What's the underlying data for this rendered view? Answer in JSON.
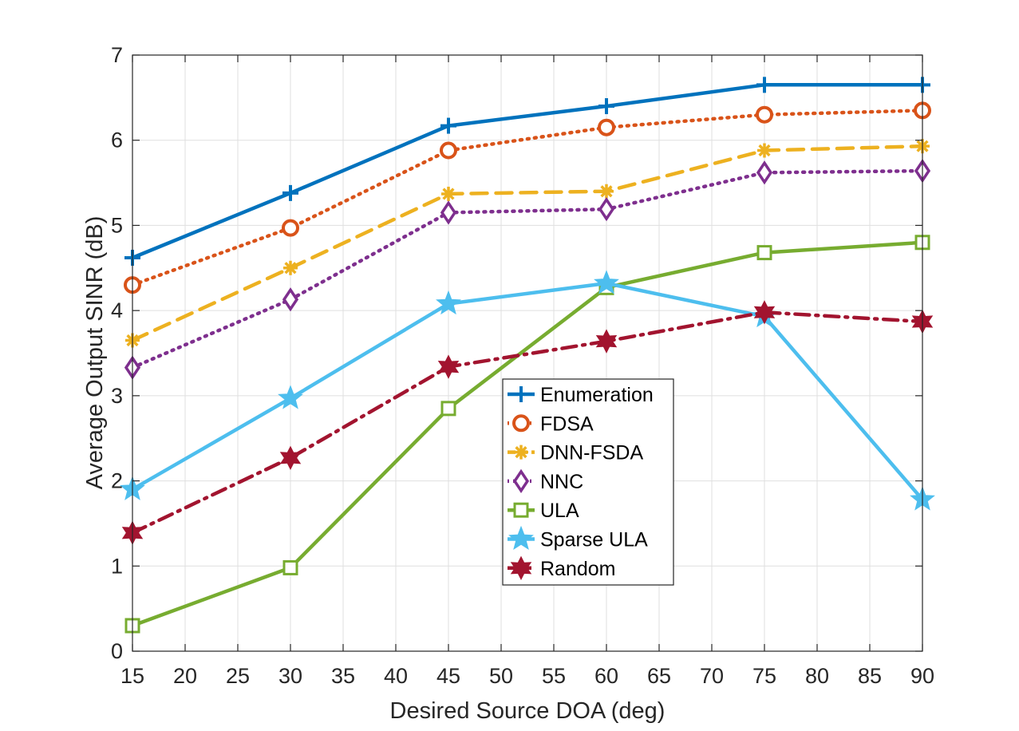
{
  "chart_data": {
    "type": "line",
    "title": "",
    "xlabel": "Desired Source DOA (deg)",
    "ylabel": "Average Output SINR (dB)",
    "xlim": [
      15,
      90
    ],
    "ylim": [
      0,
      7
    ],
    "xticks": [
      15,
      20,
      25,
      30,
      35,
      40,
      45,
      50,
      55,
      60,
      65,
      70,
      75,
      80,
      85,
      90
    ],
    "yticks": [
      0,
      1,
      2,
      3,
      4,
      5,
      6,
      7
    ],
    "grid": true,
    "legend_position": "center",
    "x": [
      15,
      30,
      45,
      60,
      75,
      90
    ],
    "series": [
      {
        "name": "Enumeration",
        "values": [
          4.62,
          5.38,
          6.17,
          6.4,
          6.65,
          6.65
        ],
        "color": "#0072BD",
        "dash": "solid",
        "marker": "plus"
      },
      {
        "name": "FDSA",
        "values": [
          4.3,
          4.97,
          5.88,
          6.15,
          6.3,
          6.35
        ],
        "color": "#D95319",
        "dash": "dotted",
        "marker": "circle"
      },
      {
        "name": "DNN-FSDA",
        "values": [
          3.65,
          4.5,
          5.37,
          5.4,
          5.88,
          5.93
        ],
        "color": "#EDB120",
        "dash": "dashed",
        "marker": "asterisk"
      },
      {
        "name": "NNC",
        "values": [
          3.33,
          4.13,
          5.15,
          5.19,
          5.62,
          5.64
        ],
        "color": "#7E2F8E",
        "dash": "dotted",
        "marker": "diamond"
      },
      {
        "name": "ULA",
        "values": [
          0.3,
          0.98,
          2.85,
          4.27,
          4.68,
          4.8
        ],
        "color": "#77AC30",
        "dash": "solid",
        "marker": "square"
      },
      {
        "name": "Sparse ULA",
        "values": [
          1.9,
          2.97,
          4.08,
          4.32,
          3.93,
          1.78
        ],
        "color": "#4DBEEE",
        "dash": "solid",
        "marker": "star5"
      },
      {
        "name": "Random",
        "values": [
          1.39,
          2.27,
          3.34,
          3.64,
          3.98,
          3.87
        ],
        "color": "#A2142F",
        "dash": "dashdot",
        "marker": "star6"
      }
    ]
  }
}
